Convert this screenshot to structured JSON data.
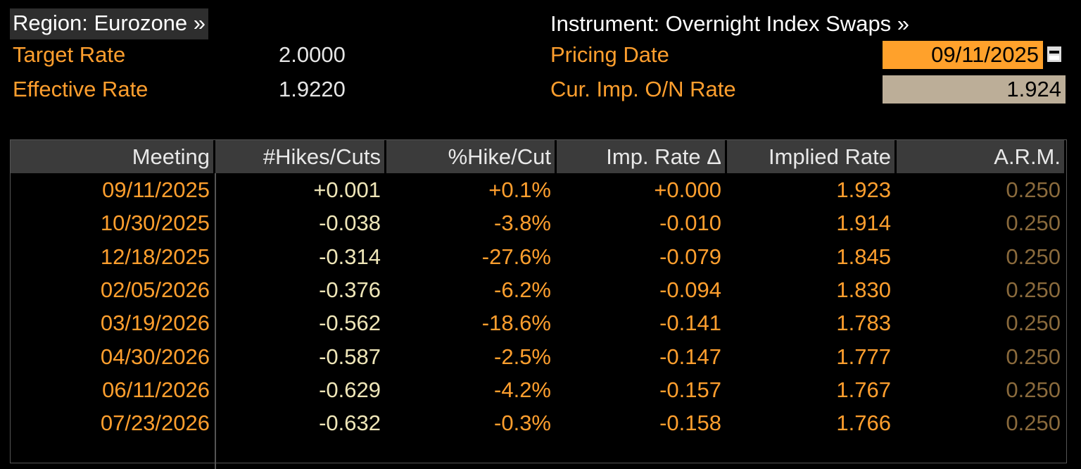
{
  "header": {
    "region": "Region: Eurozone »",
    "instrument": "Instrument: Overnight Index Swaps »",
    "target_rate_label": "Target Rate",
    "target_rate": "2.0000",
    "effective_rate_label": "Effective Rate",
    "effective_rate": "1.9220",
    "pricing_date_label": "Pricing Date",
    "pricing_date": "09/11/2025",
    "cur_imp_label": "Cur. Imp. O/N Rate",
    "cur_imp": "1.924"
  },
  "table": {
    "columns": [
      "Meeting",
      "#Hikes/Cuts",
      "%Hike/Cut",
      "Imp. Rate Δ",
      "Implied Rate",
      "A.R.M."
    ],
    "rows": [
      [
        "09/11/2025",
        "+0.001",
        "+0.1%",
        "+0.000",
        "1.923",
        "0.250"
      ],
      [
        "10/30/2025",
        "-0.038",
        "-3.8%",
        "-0.010",
        "1.914",
        "0.250"
      ],
      [
        "12/18/2025",
        "-0.314",
        "-27.6%",
        "-0.079",
        "1.845",
        "0.250"
      ],
      [
        "02/05/2026",
        "-0.376",
        "-6.2%",
        "-0.094",
        "1.830",
        "0.250"
      ],
      [
        "03/19/2026",
        "-0.562",
        "-18.6%",
        "-0.141",
        "1.783",
        "0.250"
      ],
      [
        "04/30/2026",
        "-0.587",
        "-2.5%",
        "-0.147",
        "1.777",
        "0.250"
      ],
      [
        "06/11/2026",
        "-0.629",
        "-4.2%",
        "-0.157",
        "1.767",
        "0.250"
      ],
      [
        "07/23/2026",
        "-0.632",
        "-0.3%",
        "-0.158",
        "1.766",
        "0.250"
      ]
    ]
  }
}
